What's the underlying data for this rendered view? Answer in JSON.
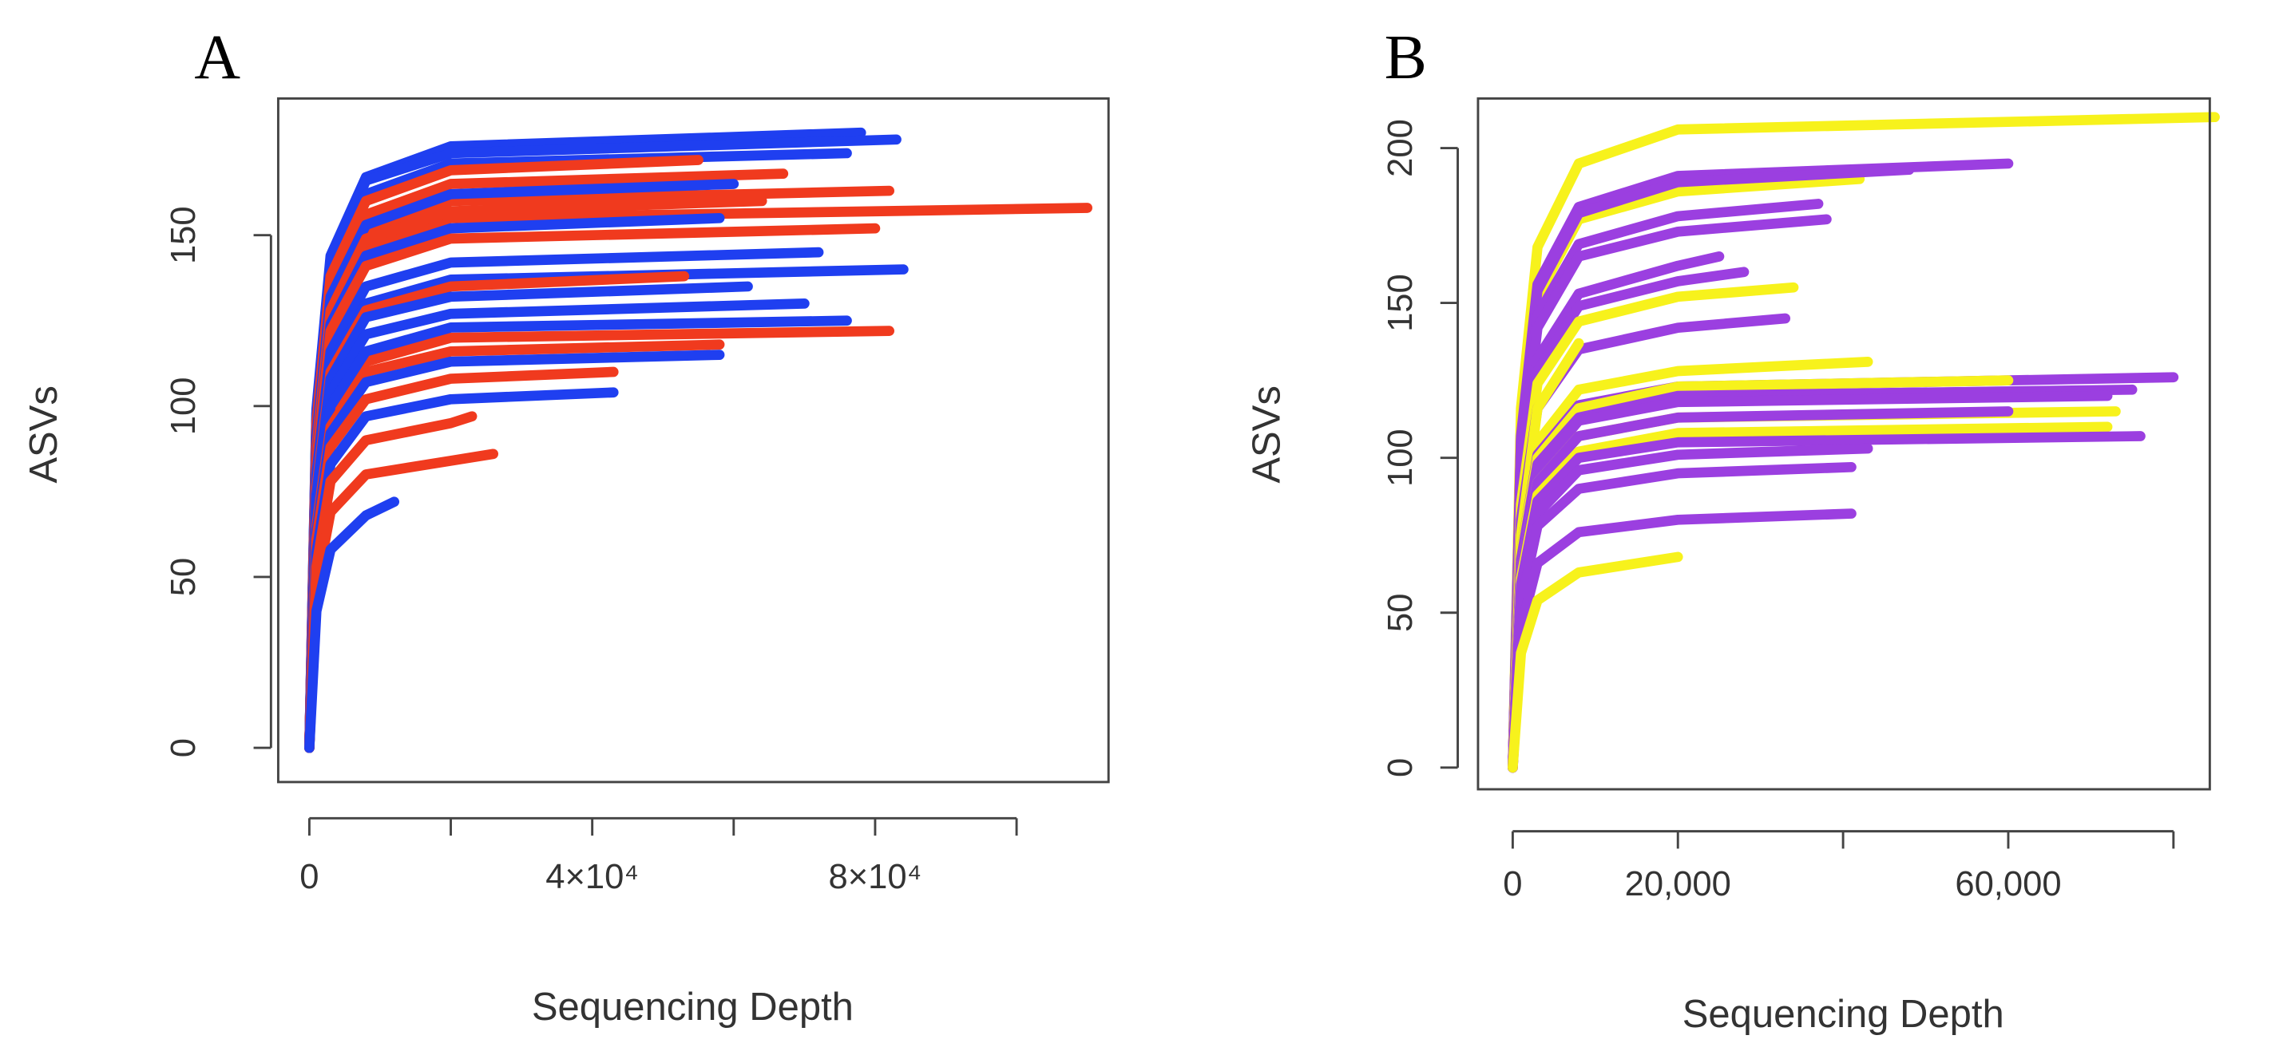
{
  "chart_data": [
    {
      "type": "line",
      "title": "A",
      "xlabel": "Sequencing Depth",
      "ylabel": "ASVs",
      "xlim": [
        -4400,
        113000
      ],
      "ylim": [
        -10,
        190
      ],
      "xticks": [
        0,
        {
          "value": 20000,
          "label": null
        },
        {
          "value": 40000,
          "label": "4×10⁴"
        },
        {
          "value": 60000,
          "label": null
        },
        {
          "value": 80000,
          "label": "8×10⁴"
        },
        {
          "value": 100000,
          "label": null
        }
      ],
      "yticks": [
        0,
        50,
        100,
        150
      ],
      "series": [
        {
          "color": "#1f3ff0",
          "x": [
            0,
            1000,
            3000,
            8000,
            20000,
            78000
          ],
          "values": [
            0,
            99,
            144,
            167,
            176,
            180
          ]
        },
        {
          "color": "#1f3ff0",
          "x": [
            0,
            1000,
            3000,
            8000,
            20000,
            83000
          ],
          "values": [
            0,
            98,
            142,
            166,
            174,
            178
          ]
        },
        {
          "color": "#f03a1e",
          "x": [
            0,
            1000,
            3000,
            8000,
            20000,
            110000
          ],
          "values": [
            0,
            87,
            126,
            147,
            155,
            158
          ]
        },
        {
          "color": "#1f3ff0",
          "x": [
            0,
            1000,
            3000,
            8000,
            20000,
            76000
          ],
          "values": [
            0,
            96,
            139,
            162,
            171,
            174
          ]
        },
        {
          "color": "#f03a1e",
          "x": [
            0,
            1000,
            3000,
            8000,
            20000,
            55000
          ],
          "values": [
            0,
            95,
            138,
            160,
            169,
            172
          ]
        },
        {
          "color": "#f03a1e",
          "x": [
            0,
            1000,
            3000,
            8000,
            20000,
            67000
          ],
          "values": [
            0,
            92,
            134,
            156,
            165,
            168
          ]
        },
        {
          "color": "#f03a1e",
          "x": [
            0,
            1000,
            3000,
            8000,
            20000,
            82000
          ],
          "values": [
            0,
            90,
            130,
            152,
            160,
            163
          ]
        },
        {
          "color": "#1f3ff0",
          "x": [
            0,
            1000,
            3000,
            8000,
            20000,
            60000
          ],
          "values": [
            0,
            91,
            132,
            153,
            162,
            165
          ]
        },
        {
          "color": "#f03a1e",
          "x": [
            0,
            1000,
            3000,
            8000,
            20000,
            64000
          ],
          "values": [
            0,
            88,
            128,
            149,
            157,
            160
          ]
        },
        {
          "color": "#1f3ff0",
          "x": [
            0,
            1000,
            3000,
            8000,
            20000,
            58000
          ],
          "values": [
            0,
            85,
            124,
            144,
            152,
            155
          ]
        },
        {
          "color": "#f03a1e",
          "x": [
            0,
            1000,
            3000,
            8000,
            20000,
            80000
          ],
          "values": [
            0,
            84,
            122,
            141,
            149,
            152
          ]
        },
        {
          "color": "#1f3ff0",
          "x": [
            0,
            1000,
            3000,
            8000,
            20000,
            72000
          ],
          "values": [
            0,
            80,
            116,
            135,
            142,
            145
          ]
        },
        {
          "color": "#1f3ff0",
          "x": [
            0,
            1000,
            3000,
            8000,
            20000,
            84000
          ],
          "values": [
            0,
            77,
            112,
            130,
            137,
            140
          ]
        },
        {
          "color": "#f03a1e",
          "x": [
            0,
            1000,
            3000,
            8000,
            20000,
            53000
          ],
          "values": [
            0,
            76,
            110,
            128,
            135,
            138
          ]
        },
        {
          "color": "#1f3ff0",
          "x": [
            0,
            1000,
            3000,
            8000,
            20000,
            62000
          ],
          "values": [
            0,
            74,
            108,
            126,
            132,
            135
          ]
        },
        {
          "color": "#1f3ff0",
          "x": [
            0,
            1000,
            3000,
            8000,
            20000,
            70000
          ],
          "values": [
            0,
            72,
            104,
            121,
            127,
            130
          ]
        },
        {
          "color": "#f03a1e",
          "x": [
            0,
            1000,
            3000,
            8000,
            20000,
            82000
          ],
          "values": [
            0,
            67,
            98,
            113,
            120,
            122
          ]
        },
        {
          "color": "#1f3ff0",
          "x": [
            0,
            1000,
            3000,
            8000,
            20000,
            76000
          ],
          "values": [
            0,
            69,
            100,
            116,
            123,
            125
          ]
        },
        {
          "color": "#f03a1e",
          "x": [
            0,
            1000,
            3000,
            8000,
            20000,
            58000
          ],
          "values": [
            0,
            65,
            94,
            110,
            116,
            118
          ]
        },
        {
          "color": "#1f3ff0",
          "x": [
            0,
            1000,
            3000,
            8000,
            20000,
            58000
          ],
          "values": [
            0,
            63,
            92,
            107,
            113,
            115
          ]
        },
        {
          "color": "#f03a1e",
          "x": [
            0,
            1000,
            3000,
            8000,
            20000,
            43000
          ],
          "values": [
            0,
            61,
            88,
            102,
            108,
            110
          ]
        },
        {
          "color": "#1f3ff0",
          "x": [
            0,
            1000,
            3000,
            8000,
            20000,
            43000
          ],
          "values": [
            0,
            57,
            83,
            97,
            102,
            104
          ]
        },
        {
          "color": "#f03a1e",
          "x": [
            0,
            1000,
            3000,
            8000,
            20000,
            23000
          ],
          "values": [
            0,
            53,
            78,
            90,
            95,
            97
          ]
        },
        {
          "color": "#f03a1e",
          "x": [
            0,
            1000,
            3000,
            8000,
            20000,
            26000
          ],
          "values": [
            0,
            47,
            69,
            80,
            84,
            86
          ]
        },
        {
          "color": "#1f3ff0",
          "x": [
            0,
            1000,
            3000,
            8000,
            12000
          ],
          "values": [
            0,
            40,
            58,
            68,
            72
          ]
        }
      ]
    },
    {
      "type": "line",
      "title": "B",
      "xlabel": "Sequencing Depth",
      "ylabel": "ASVs",
      "xlim": [
        -4200,
        84400
      ],
      "ylim": [
        -7,
        216
      ],
      "xticks": [
        0,
        {
          "value": 20000,
          "label": "20,000"
        },
        {
          "value": 40000,
          "label": null
        },
        {
          "value": 60000,
          "label": "60,000"
        },
        {
          "value": 80000,
          "label": null
        }
      ],
      "yticks": [
        0,
        50,
        100,
        150,
        200
      ],
      "series": [
        {
          "color": "#f7f21c",
          "x": [
            0,
            1000,
            3000,
            8000,
            20000,
            85000
          ],
          "values": [
            0,
            116,
            168,
            195,
            206,
            210
          ]
        },
        {
          "color": "#f7f21c",
          "x": [
            0,
            1000,
            3000,
            8000,
            20000,
            42000
          ],
          "values": [
            0,
            105,
            152,
            177,
            186,
            190
          ]
        },
        {
          "color": "#9b3fe0",
          "x": [
            0,
            1000,
            3000,
            8000,
            20000,
            60000
          ],
          "values": [
            0,
            107,
            156,
            181,
            191,
            195
          ]
        },
        {
          "color": "#9b3fe0",
          "x": [
            0,
            1000,
            3000,
            8000,
            20000,
            48000
          ],
          "values": [
            0,
            106,
            154,
            179,
            189,
            193
          ]
        },
        {
          "color": "#9b3fe0",
          "x": [
            0,
            1000,
            3000,
            8000,
            20000,
            37000
          ],
          "values": [
            0,
            100,
            146,
            169,
            178,
            182
          ]
        },
        {
          "color": "#9b3fe0",
          "x": [
            0,
            1000,
            3000,
            8000,
            20000,
            38000
          ],
          "values": [
            0,
            97,
            142,
            165,
            173,
            177
          ]
        },
        {
          "color": "#9b3fe0",
          "x": [
            0,
            1000,
            3000,
            8000,
            20000,
            25000
          ],
          "values": [
            0,
            91,
            132,
            153,
            162,
            165
          ]
        },
        {
          "color": "#9b3fe0",
          "x": [
            0,
            1000,
            3000,
            8000,
            20000,
            28000
          ],
          "values": [
            0,
            88,
            128,
            149,
            157,
            160
          ]
        },
        {
          "color": "#f7f21c",
          "x": [
            0,
            1000,
            3000,
            8000,
            20000,
            34000
          ],
          "values": [
            0,
            85,
            124,
            144,
            152,
            155
          ]
        },
        {
          "color": "#9b3fe0",
          "x": [
            0,
            1000,
            3000,
            8000,
            20000,
            33000
          ],
          "values": [
            0,
            80,
            116,
            135,
            142,
            145
          ]
        },
        {
          "color": "#f7f21c",
          "x": [
            0,
            1000,
            3000,
            8000
          ],
          "values": [
            0,
            75,
            116,
            137
          ]
        },
        {
          "color": "#f7f21c",
          "x": [
            0,
            1000,
            3000,
            8000,
            20000,
            43000
          ],
          "values": [
            0,
            72,
            105,
            122,
            128,
            131
          ]
        },
        {
          "color": "#9b3fe0",
          "x": [
            0,
            1000,
            3000,
            8000,
            20000,
            80000
          ],
          "values": [
            0,
            69,
            101,
            117,
            123,
            126
          ]
        },
        {
          "color": "#f7f21c",
          "x": [
            0,
            1000,
            3000,
            8000,
            20000,
            60000
          ],
          "values": [
            0,
            69,
            100,
            116,
            123,
            125
          ]
        },
        {
          "color": "#9b3fe0",
          "x": [
            0,
            1000,
            3000,
            8000,
            20000,
            75000
          ],
          "values": [
            0,
            67,
            98,
            113,
            120,
            122
          ]
        },
        {
          "color": "#9b3fe0",
          "x": [
            0,
            1000,
            3000,
            8000,
            20000,
            72000
          ],
          "values": [
            0,
            66,
            96,
            112,
            118,
            120
          ]
        },
        {
          "color": "#f7f21c",
          "x": [
            0,
            1000,
            3000,
            8000,
            20000,
            73000
          ],
          "values": [
            0,
            63,
            92,
            107,
            113,
            115
          ]
        },
        {
          "color": "#9b3fe0",
          "x": [
            0,
            1000,
            3000,
            8000,
            20000,
            60000
          ],
          "values": [
            0,
            63,
            92,
            107,
            113,
            115
          ]
        },
        {
          "color": "#f7f21c",
          "x": [
            0,
            1000,
            3000,
            8000,
            20000,
            72000
          ],
          "values": [
            0,
            61,
            88,
            102,
            108,
            110
          ]
        },
        {
          "color": "#9b3fe0",
          "x": [
            0,
            1000,
            3000,
            8000,
            20000,
            76000
          ],
          "values": [
            0,
            59,
            86,
            100,
            105,
            107
          ]
        },
        {
          "color": "#9b3fe0",
          "x": [
            0,
            1000,
            3000,
            8000,
            20000,
            43000
          ],
          "values": [
            0,
            57,
            82,
            96,
            101,
            103
          ]
        },
        {
          "color": "#9b3fe0",
          "x": [
            0,
            1000,
            3000,
            8000,
            20000,
            41000
          ],
          "values": [
            0,
            53,
            78,
            90,
            95,
            97
          ]
        },
        {
          "color": "#9b3fe0",
          "x": [
            0,
            1000,
            3000,
            8000,
            20000,
            41000
          ],
          "values": [
            0,
            45,
            66,
            76,
            80,
            82
          ]
        },
        {
          "color": "#f7f21c",
          "x": [
            0,
            1000,
            3000,
            8000,
            20000
          ],
          "values": [
            0,
            37,
            54,
            63,
            68
          ]
        }
      ]
    }
  ]
}
